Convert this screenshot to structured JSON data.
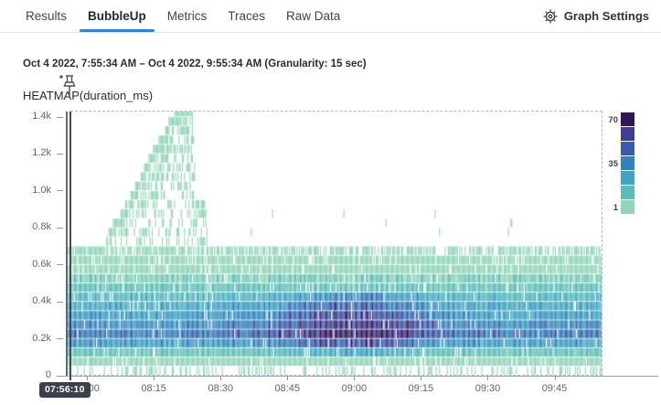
{
  "tabs": {
    "items": [
      {
        "label": "Results",
        "active": false
      },
      {
        "label": "BubbleUp",
        "active": true
      },
      {
        "label": "Metrics",
        "active": false
      },
      {
        "label": "Traces",
        "active": false
      },
      {
        "label": "Raw Data",
        "active": false
      }
    ],
    "settings_label": "Graph Settings"
  },
  "header": {
    "time_range": "Oct 4 2022, 7:55:34 AM – Oct 4 2022, 9:55:34 AM (Granularity: 15 sec)"
  },
  "chart_data": {
    "type": "heatmap",
    "title": "HEATMAP(duration_ms)",
    "x_start": "7:55:34 AM",
    "x_end": "9:55:34 AM",
    "total_sec": 7200,
    "granularity_sec": 15,
    "columns": 480,
    "x_ticks": [
      "08:00",
      "08:15",
      "08:30",
      "08:45",
      "09:00",
      "09:15",
      "09:30",
      "09:45"
    ],
    "first_tick_offset_sec": 266,
    "tick_interval_sec": 900,
    "y_ticks": [
      {
        "label": "0",
        "value": 0
      },
      {
        "label": "0.2k",
        "value": 200
      },
      {
        "label": "0.4k",
        "value": 400
      },
      {
        "label": "0.6k",
        "value": 600
      },
      {
        "label": "0.8k",
        "value": 800
      },
      {
        "label": "1.0k",
        "value": 1000
      },
      {
        "label": "1.2k",
        "value": 1200
      },
      {
        "label": "1.4k",
        "value": 1400
      }
    ],
    "y_max_ms": 1430,
    "bucket_ms": 50,
    "legend": {
      "labels_top_to_bottom": [
        "70",
        "35",
        "1"
      ],
      "label_swatch_index": [
        0,
        3,
        6
      ]
    },
    "color_scale": {
      "colors_light_to_dark": [
        "#92d6b8",
        "#5abdb8",
        "#3fa5c6",
        "#2e84bc",
        "#3a5bad",
        "#3d3c97",
        "#33165a"
      ],
      "count_per_step": 10,
      "min_count": 1,
      "max_count": 70
    },
    "bands": [
      {
        "y0": 0,
        "y1": 50,
        "presence": 0.33,
        "min": 1,
        "max": 3
      },
      {
        "y0": 50,
        "y1": 100,
        "presence": 0.96,
        "min": 3,
        "max": 9
      },
      {
        "y0": 100,
        "y1": 150,
        "presence": 1.0,
        "min": 9,
        "max": 18
      },
      {
        "y0": 150,
        "y1": 200,
        "presence": 1.0,
        "min": 20,
        "max": 36
      },
      {
        "y0": 200,
        "y1": 250,
        "presence": 1.0,
        "min": 30,
        "max": 48
      },
      {
        "y0": 250,
        "y1": 300,
        "presence": 1.0,
        "min": 26,
        "max": 40
      },
      {
        "y0": 300,
        "y1": 350,
        "presence": 1.0,
        "min": 22,
        "max": 36
      },
      {
        "y0": 350,
        "y1": 400,
        "presence": 1.0,
        "min": 18,
        "max": 30
      },
      {
        "y0": 400,
        "y1": 450,
        "presence": 1.0,
        "min": 14,
        "max": 24
      },
      {
        "y0": 450,
        "y1": 500,
        "presence": 1.0,
        "min": 10,
        "max": 18
      },
      {
        "y0": 500,
        "y1": 550,
        "presence": 1.0,
        "min": 7,
        "max": 13
      },
      {
        "y0": 550,
        "y1": 600,
        "presence": 0.97,
        "min": 4,
        "max": 9
      },
      {
        "y0": 600,
        "y1": 650,
        "presence": 0.9,
        "min": 2,
        "max": 6
      },
      {
        "y0": 650,
        "y1": 700,
        "presence": 0.7,
        "min": 1,
        "max": 3
      }
    ],
    "hotspot": {
      "center_sec": 3866,
      "sigma_sec": 1000,
      "boost": 0.85,
      "y0": 100,
      "y1": 450
    },
    "spike": {
      "base_ms": 700,
      "envelope_sec_ms": [
        [
          520,
          720
        ],
        [
          640,
          820
        ],
        [
          760,
          880
        ],
        [
          880,
          980
        ],
        [
          1000,
          1060
        ],
        [
          1120,
          1180
        ],
        [
          1240,
          1260
        ],
        [
          1360,
          1340
        ],
        [
          1450,
          1420
        ],
        [
          1700,
          1430
        ],
        [
          1730,
          950
        ],
        [
          1860,
          900
        ],
        [
          1890,
          720
        ]
      ]
    },
    "high_outliers": {
      "presence": 0.028,
      "y0": 700,
      "y1": 900
    },
    "dropout": 0.05,
    "seed": 42,
    "crosshair": {
      "label": "07:56:10",
      "offset_sec": 36
    }
  }
}
